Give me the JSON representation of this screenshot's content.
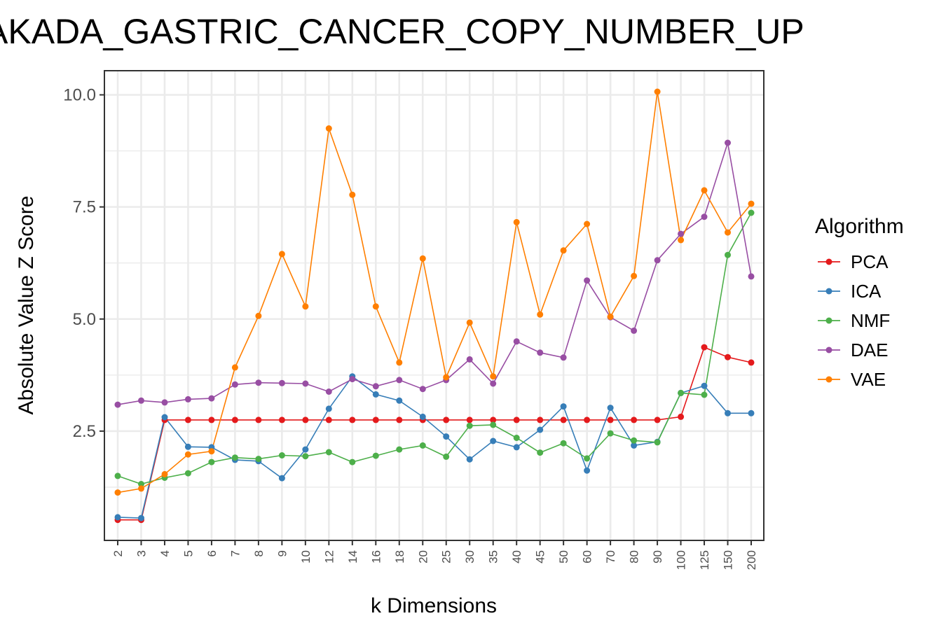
{
  "chart_data": {
    "type": "line",
    "title": "AKADA_GASTRIC_CANCER_COPY_NUMBER_UP",
    "xlabel": "k Dimensions",
    "ylabel": "Absolute Value Z Score",
    "ylim": [
      0.0,
      10.5
    ],
    "yticks": [
      "2.5",
      "5.0",
      "7.5",
      "10.0"
    ],
    "grid": true,
    "legend_title": "Algorithm",
    "legend_position": "right",
    "categories": [
      "2",
      "3",
      "4",
      "5",
      "6",
      "7",
      "8",
      "9",
      "10",
      "12",
      "14",
      "16",
      "18",
      "20",
      "25",
      "30",
      "35",
      "40",
      "45",
      "50",
      "60",
      "70",
      "80",
      "90",
      "100",
      "125",
      "150",
      "200"
    ],
    "series": [
      {
        "name": "PCA",
        "color": "#e41a1c",
        "values": [
          0.52,
          0.52,
          2.75,
          2.75,
          2.75,
          2.75,
          2.75,
          2.75,
          2.75,
          2.75,
          2.75,
          2.75,
          2.75,
          2.75,
          2.75,
          2.75,
          2.75,
          2.75,
          2.75,
          2.75,
          2.75,
          2.75,
          2.75,
          2.75,
          2.82,
          4.37,
          4.15,
          4.03
        ]
      },
      {
        "name": "ICA",
        "color": "#377eb8",
        "values": [
          0.58,
          0.56,
          2.81,
          2.15,
          2.14,
          1.86,
          1.83,
          1.45,
          2.09,
          3.0,
          3.72,
          3.32,
          3.18,
          2.82,
          2.38,
          1.87,
          2.28,
          2.14,
          2.53,
          3.05,
          1.62,
          3.02,
          2.18,
          2.26,
          3.35,
          3.51,
          2.9,
          2.9
        ]
      },
      {
        "name": "NMF",
        "color": "#4daf4a",
        "values": [
          1.5,
          1.32,
          1.46,
          1.56,
          1.81,
          1.91,
          1.88,
          1.96,
          1.94,
          2.03,
          1.81,
          1.95,
          2.09,
          2.18,
          1.93,
          2.62,
          2.64,
          2.35,
          2.02,
          2.23,
          1.89,
          2.45,
          2.29,
          2.25,
          3.35,
          3.31,
          6.43,
          7.37
        ]
      },
      {
        "name": "DAE",
        "color": "#984ea3",
        "values": [
          3.09,
          3.18,
          3.14,
          3.21,
          3.23,
          3.54,
          3.58,
          3.57,
          3.56,
          3.38,
          3.66,
          3.5,
          3.64,
          3.44,
          3.64,
          4.1,
          3.56,
          4.5,
          4.25,
          4.14,
          5.86,
          5.04,
          4.74,
          6.31,
          6.9,
          7.28,
          8.93,
          5.95
        ]
      },
      {
        "name": "VAE",
        "color": "#ff7f00",
        "values": [
          1.13,
          1.22,
          1.54,
          1.98,
          2.05,
          3.92,
          5.07,
          6.45,
          5.28,
          9.25,
          7.77,
          5.28,
          4.03,
          6.35,
          3.7,
          4.92,
          3.72,
          7.16,
          5.1,
          6.53,
          7.12,
          5.05,
          5.96,
          10.07,
          6.76,
          7.87,
          6.93,
          7.57
        ]
      }
    ]
  }
}
